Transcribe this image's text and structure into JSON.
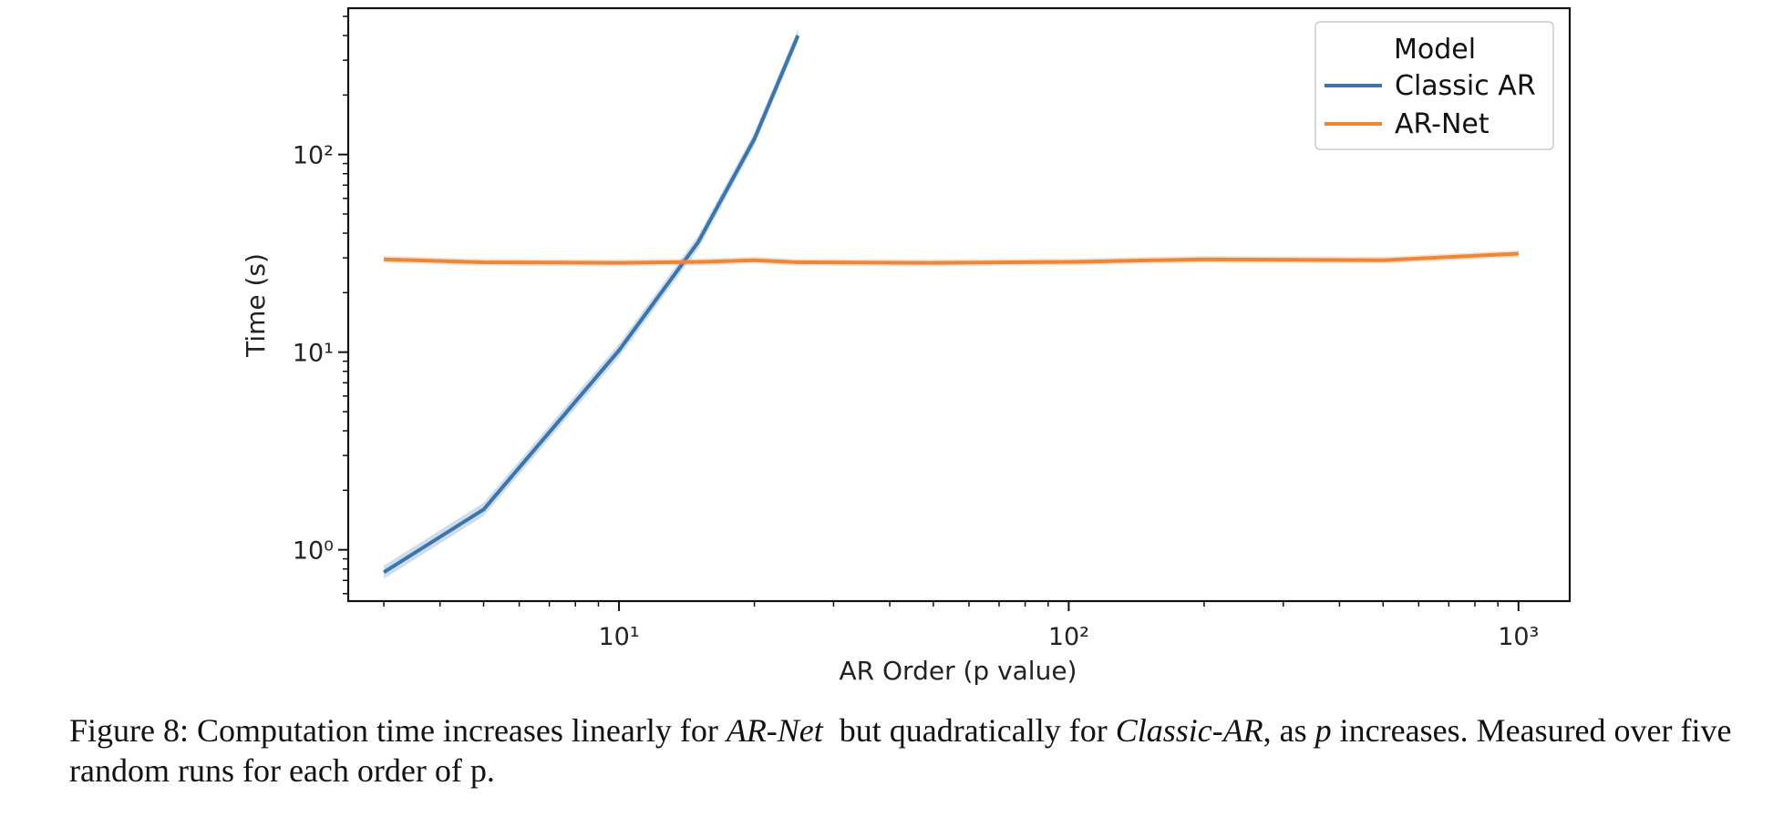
{
  "chart_data": {
    "type": "line",
    "title": "",
    "xlabel": "AR Order (p value)",
    "ylabel": "Time (s)",
    "xscale": "log",
    "yscale": "log",
    "xlim": [
      2.5,
      1300
    ],
    "ylim": [
      0.55,
      550
    ],
    "xticks": [
      {
        "value": 10,
        "label": "10¹"
      },
      {
        "value": 100,
        "label": "10²"
      },
      {
        "value": 1000,
        "label": "10³"
      }
    ],
    "yticks": [
      {
        "value": 1,
        "label": "10⁰"
      },
      {
        "value": 10,
        "label": "10¹"
      },
      {
        "value": 100,
        "label": "10²"
      }
    ],
    "grid": false,
    "legend": {
      "title": "Model",
      "position": "top-right"
    },
    "series": [
      {
        "name": "Classic AR",
        "color": "#3a75ae",
        "x": [
          3,
          5,
          10,
          15,
          20,
          25
        ],
        "y": [
          0.77,
          1.6,
          10.2,
          36,
          120,
          400
        ],
        "band": 0.08
      },
      {
        "name": "AR-Net",
        "color": "#ef8636",
        "x": [
          3,
          5,
          10,
          15,
          20,
          25,
          50,
          100,
          200,
          500,
          1000
        ],
        "y": [
          29.5,
          28.5,
          28.3,
          28.6,
          29.2,
          28.5,
          28.3,
          28.6,
          29.5,
          29.2,
          31.5
        ],
        "band": 0.04
      }
    ]
  },
  "caption": {
    "prefix": "Figure 8: Computation time increases linearly for ",
    "term1": "AR-Net",
    "middle": "  but quadratically for ",
    "term2": "Classic-AR",
    "after": ", as ",
    "var": "p",
    "suffix": " increases. Measured over five random runs for each order of p."
  }
}
